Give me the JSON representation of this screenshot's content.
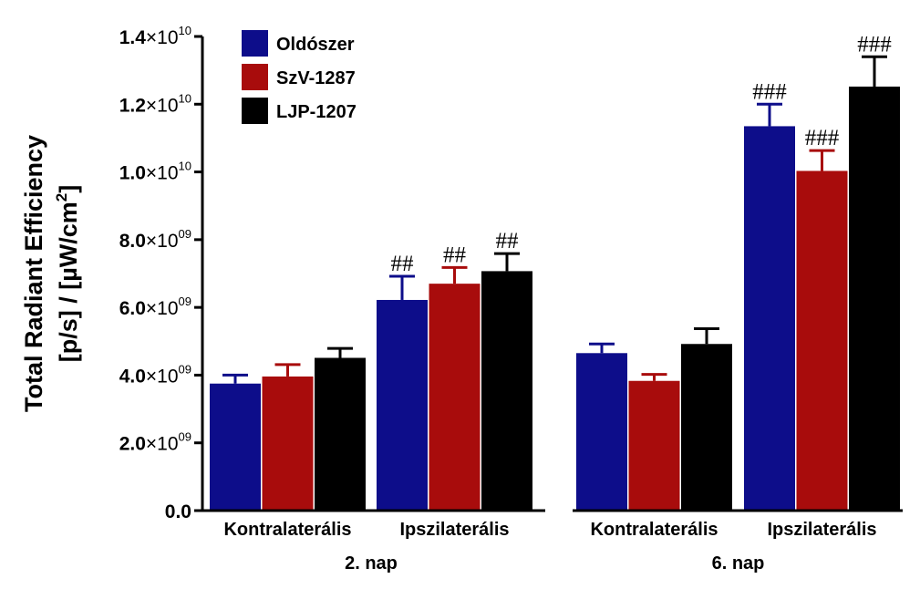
{
  "chart_data": {
    "type": "bar",
    "ylabel_line1": "Total Radiant Efficiency",
    "ylabel_line2_prefix": "[p/s] / [µW/cm",
    "ylabel_line2_sup": "2",
    "ylabel_line2_suffix": "]",
    "ylim": [
      0,
      14000000000.0
    ],
    "y_ticks": [
      {
        "value": 0,
        "mantissa": "0.0",
        "exponent": ""
      },
      {
        "value": 2000000000.0,
        "mantissa": "2.0",
        "exponent": "09"
      },
      {
        "value": 4000000000.0,
        "mantissa": "4.0",
        "exponent": "09"
      },
      {
        "value": 6000000000.0,
        "mantissa": "6.0",
        "exponent": "09"
      },
      {
        "value": 8000000000.0,
        "mantissa": "8.0",
        "exponent": "09"
      },
      {
        "value": 10000000000.0,
        "mantissa": "1.0",
        "exponent": "10"
      },
      {
        "value": 12000000000.0,
        "mantissa": "1.2",
        "exponent": "10"
      },
      {
        "value": 14000000000.0,
        "mantissa": "1.4",
        "exponent": "10"
      }
    ],
    "groups": [
      {
        "label": "2. nap",
        "subcategories": [
          "Kontralaterális",
          "Ipszilaterális"
        ]
      },
      {
        "label": "6. nap",
        "subcategories": [
          "Kontralaterális",
          "Ipszilaterális"
        ]
      }
    ],
    "series": [
      {
        "name": "Oldószer",
        "color": "#0d0d8a",
        "values": [
          3750000000.0,
          6220000000.0,
          4650000000.0,
          11350000000.0
        ],
        "errors": [
          250000000.0,
          700000000.0,
          270000000.0,
          650000000.0
        ],
        "annotations": [
          "",
          "##",
          "",
          "###"
        ]
      },
      {
        "name": "SzV-1287",
        "color": "#a80c0c",
        "values": [
          3960000000.0,
          6700000000.0,
          3830000000.0,
          10030000000.0
        ],
        "errors": [
          350000000.0,
          480000000.0,
          190000000.0,
          600000000.0
        ],
        "annotations": [
          "",
          "##",
          "",
          "###"
        ]
      },
      {
        "name": "LJP-1207",
        "color": "#000000",
        "values": [
          4510000000.0,
          7070000000.0,
          4920000000.0,
          12520000000.0
        ],
        "errors": [
          280000000.0,
          520000000.0,
          450000000.0,
          880000000.0
        ],
        "annotations": [
          "",
          "##",
          "",
          "###"
        ]
      }
    ],
    "legend_position": "top-left",
    "grid": false
  }
}
